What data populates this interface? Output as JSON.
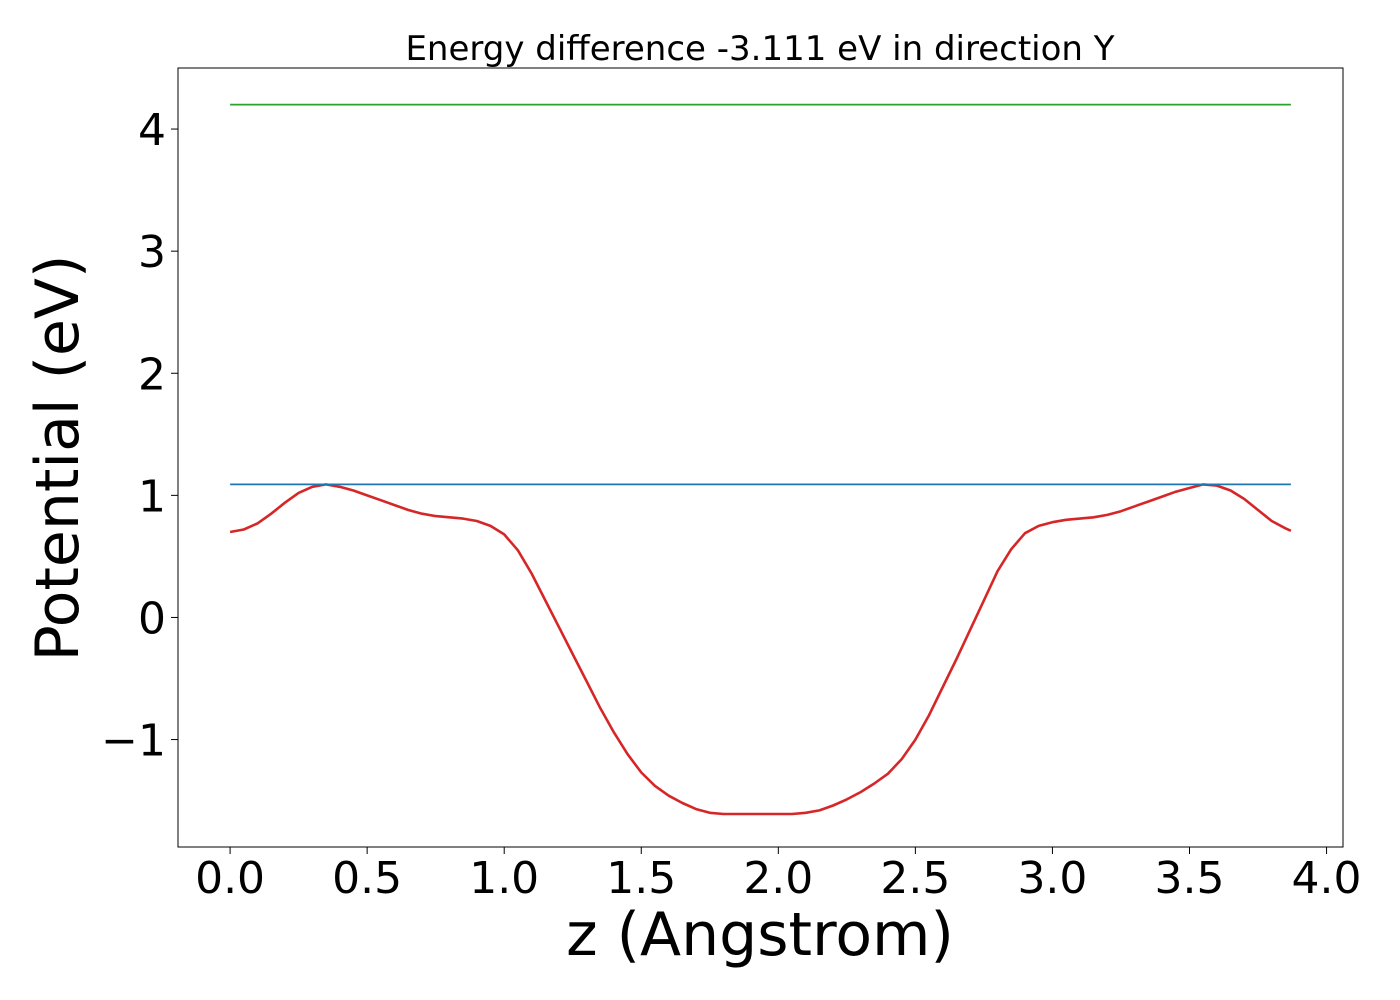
{
  "chart_data": {
    "type": "line",
    "title": "Energy difference -3.111 eV in direction Y",
    "xlabel": "z (Angstrom)",
    "ylabel": "Potential (eV)",
    "xlim": [
      -0.19,
      4.06
    ],
    "ylim": [
      -1.88,
      4.5
    ],
    "xticks": [
      {
        "value": 0.0,
        "label": "0.0"
      },
      {
        "value": 0.5,
        "label": "0.5"
      },
      {
        "value": 1.0,
        "label": "1.0"
      },
      {
        "value": 1.5,
        "label": "1.5"
      },
      {
        "value": 2.0,
        "label": "2.0"
      },
      {
        "value": 2.5,
        "label": "2.5"
      },
      {
        "value": 3.0,
        "label": "3.0"
      },
      {
        "value": 3.5,
        "label": "3.5"
      },
      {
        "value": 4.0,
        "label": "4.0"
      }
    ],
    "yticks": [
      {
        "value": -1,
        "label": "−1"
      },
      {
        "value": 0,
        "label": "0"
      },
      {
        "value": 1,
        "label": "1"
      },
      {
        "value": 2,
        "label": "2"
      },
      {
        "value": 3,
        "label": "3"
      },
      {
        "value": 4,
        "label": "4"
      }
    ],
    "grid": false,
    "series": [
      {
        "color": "#d62728",
        "x": [
          0.0,
          0.05,
          0.1,
          0.15,
          0.2,
          0.25,
          0.3,
          0.35,
          0.4,
          0.45,
          0.5,
          0.55,
          0.6,
          0.65,
          0.7,
          0.75,
          0.8,
          0.85,
          0.9,
          0.95,
          1.0,
          1.05,
          1.1,
          1.15,
          1.2,
          1.25,
          1.3,
          1.35,
          1.4,
          1.45,
          1.5,
          1.55,
          1.6,
          1.65,
          1.7,
          1.75,
          1.8,
          1.85,
          1.9,
          1.95,
          2.0,
          2.05,
          2.1,
          2.15,
          2.2,
          2.25,
          2.3,
          2.35,
          2.4,
          2.45,
          2.5,
          2.55,
          2.6,
          2.65,
          2.7,
          2.75,
          2.8,
          2.85,
          2.9,
          2.95,
          3.0,
          3.05,
          3.1,
          3.15,
          3.2,
          3.25,
          3.3,
          3.35,
          3.4,
          3.45,
          3.5,
          3.55,
          3.6,
          3.65,
          3.7,
          3.75,
          3.8,
          3.85,
          3.87
        ],
        "y": [
          0.7,
          0.72,
          0.77,
          0.85,
          0.94,
          1.02,
          1.07,
          1.09,
          1.07,
          1.04,
          1.0,
          0.96,
          0.92,
          0.88,
          0.85,
          0.83,
          0.82,
          0.81,
          0.79,
          0.75,
          0.68,
          0.55,
          0.36,
          0.14,
          -0.08,
          -0.3,
          -0.52,
          -0.74,
          -0.94,
          -1.12,
          -1.27,
          -1.38,
          -1.46,
          -1.52,
          -1.57,
          -1.6,
          -1.61,
          -1.61,
          -1.61,
          -1.61,
          -1.61,
          -1.61,
          -1.6,
          -1.58,
          -1.54,
          -1.49,
          -1.43,
          -1.36,
          -1.28,
          -1.16,
          -1.0,
          -0.8,
          -0.57,
          -0.34,
          -0.1,
          0.14,
          0.38,
          0.56,
          0.69,
          0.75,
          0.78,
          0.8,
          0.81,
          0.82,
          0.84,
          0.87,
          0.91,
          0.95,
          0.99,
          1.03,
          1.06,
          1.09,
          1.08,
          1.04,
          0.97,
          0.88,
          0.79,
          0.73,
          0.71
        ]
      },
      {
        "color": "#1f77b4",
        "x": [
          0.0,
          3.87
        ],
        "y": [
          1.09,
          1.09
        ]
      },
      {
        "color": "#2ca02c",
        "x": [
          0.0,
          3.87
        ],
        "y": [
          4.2,
          4.2
        ]
      }
    ]
  }
}
